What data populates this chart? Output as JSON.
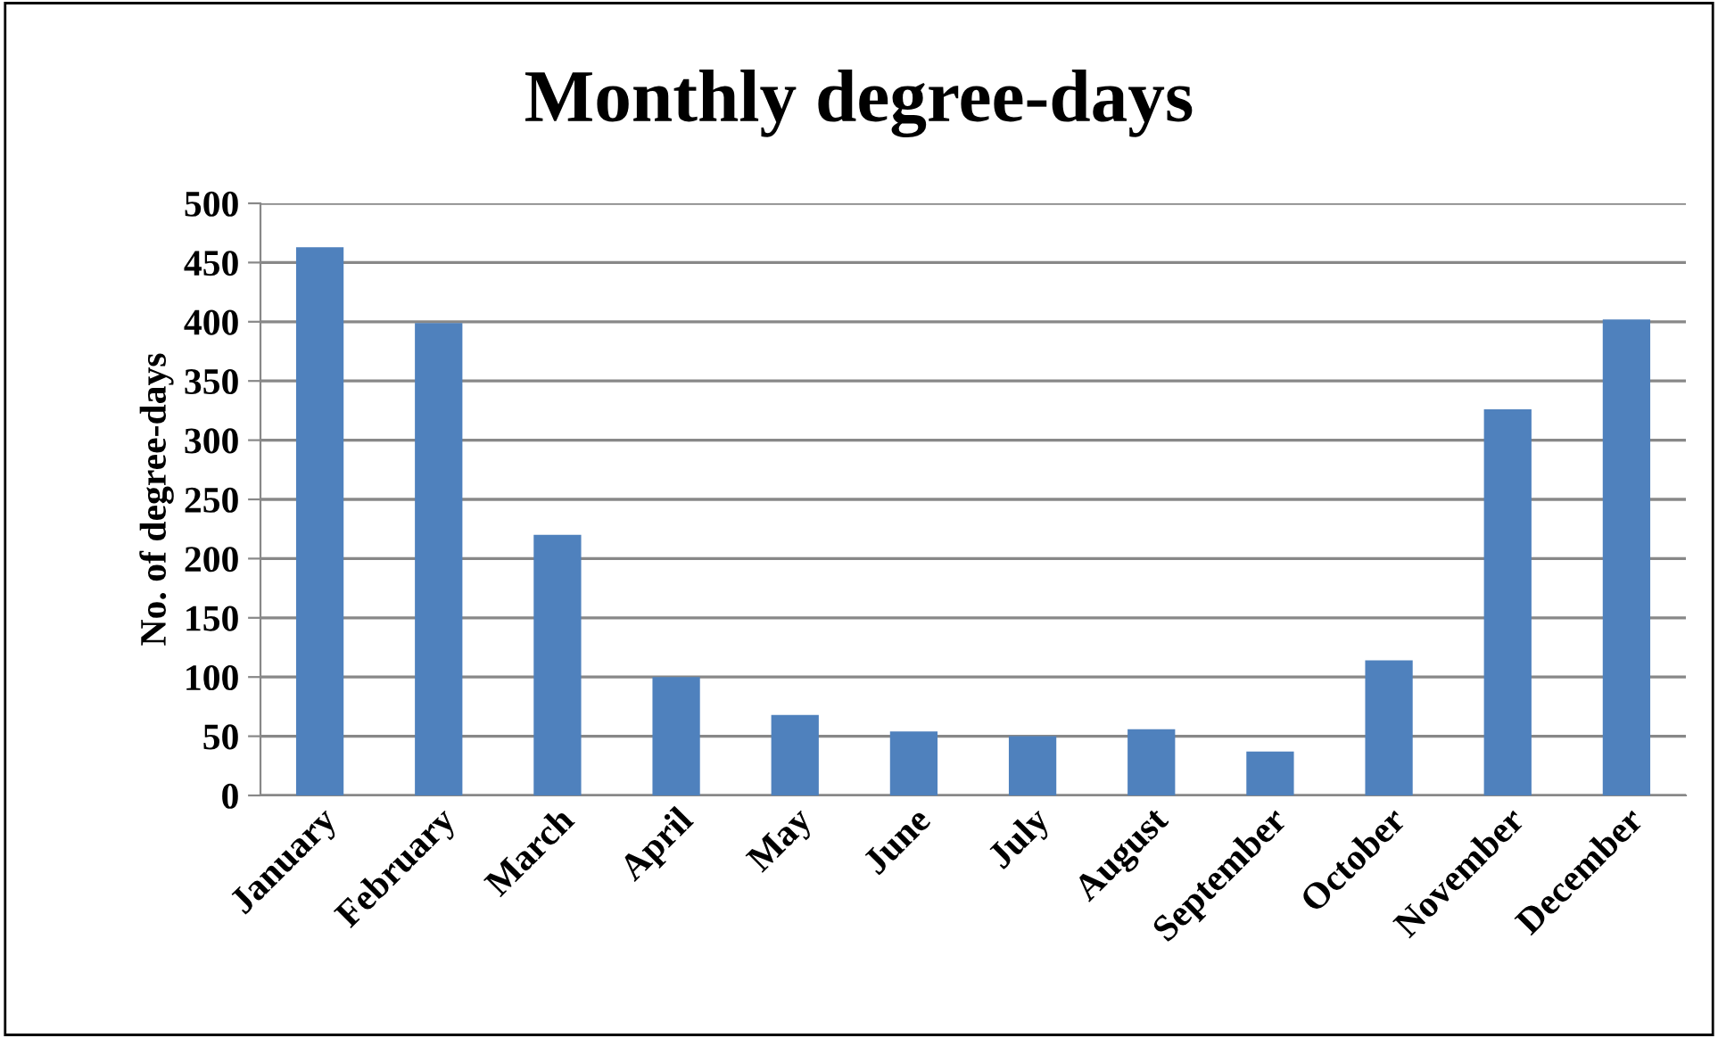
{
  "chart_data": {
    "type": "bar",
    "title": "Monthly degree-days",
    "ylabel": "No. of degree-days",
    "categories": [
      "January",
      "February",
      "March",
      "April",
      "May",
      "June",
      "July",
      "August",
      "September",
      "October",
      "November",
      "December"
    ],
    "values": [
      463,
      399,
      220,
      100,
      68,
      54,
      50,
      56,
      37,
      114,
      326,
      402
    ],
    "color": "#4f81bd",
    "ylim": [
      0,
      500
    ],
    "yticks": [
      0,
      50,
      100,
      150,
      200,
      250,
      300,
      350,
      400,
      450,
      500
    ],
    "grid": "y",
    "legend": false
  }
}
